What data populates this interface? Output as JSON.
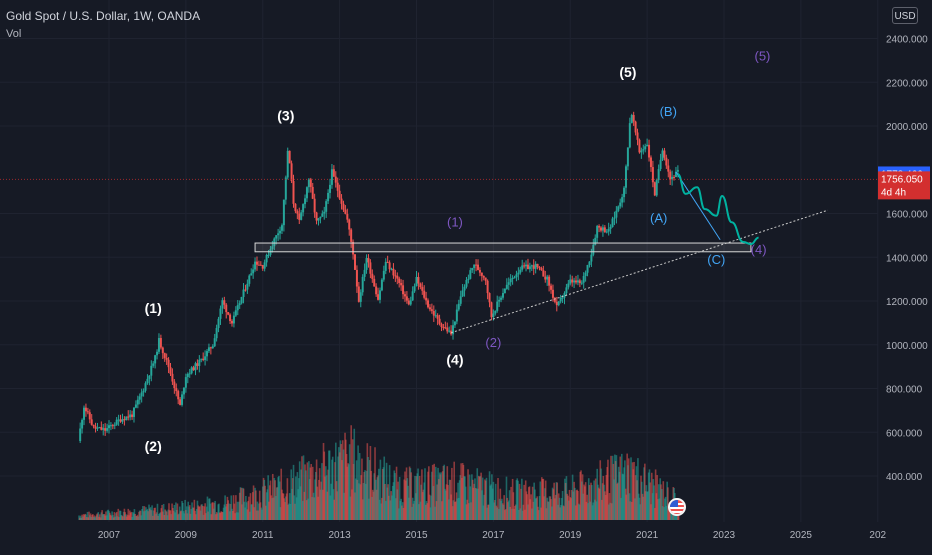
{
  "header": {
    "title": "Gold Spot / U.S. Dollar, 1W, OANDA",
    "indicator": "Vol",
    "currency_button": "USD"
  },
  "colors": {
    "background": "#161a25",
    "grid": "#1f2330",
    "axis_text": "#b2b5be",
    "up_candle": "#26a69a",
    "down_candle": "#ef5350",
    "wave_primary": "#ffffff",
    "wave_intermediate": "#7e57c2",
    "wave_corrective": "#42a5f5",
    "projection": "#00b2a0",
    "support_line": "#c8c8c8",
    "current_price_label": "#d32f2f",
    "last_price_label": "#2962ff"
  },
  "chart_data": {
    "type": "candlestick",
    "symbol": "Gold Spot / U.S. Dollar",
    "timeframe": "1W",
    "source": "OANDA",
    "x_ticks": [
      "2007",
      "2009",
      "2011",
      "2013",
      "2015",
      "2017",
      "2019",
      "2021",
      "2023",
      "2025",
      "202"
    ],
    "y_ticks": [
      "400.000",
      "600.000",
      "800.000",
      "1000.000",
      "1200.000",
      "1400.000",
      "1600.000",
      "2000.000",
      "2200.000",
      "2400.000"
    ],
    "ylim": [
      400,
      2500
    ],
    "xlim": [
      2005.5,
      2027.1
    ],
    "price_labels": {
      "last": "1778.466",
      "current": "1756.050",
      "countdown": "4d 4h"
    },
    "price_path": [
      [
        2006.2,
        560
      ],
      [
        2006.35,
        720
      ],
      [
        2006.6,
        620
      ],
      [
        2006.9,
        610
      ],
      [
        2007.3,
        660
      ],
      [
        2007.6,
        680
      ],
      [
        2007.9,
        800
      ],
      [
        2008.2,
        940
      ],
      [
        2008.3,
        1020
      ],
      [
        2008.55,
        900
      ],
      [
        2008.85,
        720
      ],
      [
        2009.0,
        860
      ],
      [
        2009.4,
        930
      ],
      [
        2009.7,
        1000
      ],
      [
        2009.95,
        1200
      ],
      [
        2010.2,
        1100
      ],
      [
        2010.5,
        1240
      ],
      [
        2010.8,
        1380
      ],
      [
        2011.0,
        1360
      ],
      [
        2011.3,
        1480
      ],
      [
        2011.5,
        1550
      ],
      [
        2011.66,
        1900
      ],
      [
        2011.8,
        1650
      ],
      [
        2011.95,
        1560
      ],
      [
        2012.2,
        1760
      ],
      [
        2012.4,
        1560
      ],
      [
        2012.6,
        1600
      ],
      [
        2012.8,
        1790
      ],
      [
        2013.0,
        1680
      ],
      [
        2013.2,
        1570
      ],
      [
        2013.35,
        1420
      ],
      [
        2013.5,
        1200
      ],
      [
        2013.7,
        1400
      ],
      [
        2014.0,
        1210
      ],
      [
        2014.2,
        1380
      ],
      [
        2014.5,
        1300
      ],
      [
        2014.8,
        1180
      ],
      [
        2015.0,
        1300
      ],
      [
        2015.3,
        1180
      ],
      [
        2015.6,
        1100
      ],
      [
        2015.9,
        1050
      ],
      [
        2016.2,
        1250
      ],
      [
        2016.5,
        1370
      ],
      [
        2016.8,
        1300
      ],
      [
        2016.95,
        1130
      ],
      [
        2017.3,
        1260
      ],
      [
        2017.7,
        1350
      ],
      [
        2018.1,
        1360
      ],
      [
        2018.4,
        1300
      ],
      [
        2018.65,
        1170
      ],
      [
        2019.0,
        1290
      ],
      [
        2019.3,
        1280
      ],
      [
        2019.55,
        1420
      ],
      [
        2019.7,
        1540
      ],
      [
        2020.0,
        1520
      ],
      [
        2020.2,
        1610
      ],
      [
        2020.4,
        1710
      ],
      [
        2020.58,
        2075
      ],
      [
        2020.8,
        1880
      ],
      [
        2021.0,
        1920
      ],
      [
        2021.2,
        1690
      ],
      [
        2021.4,
        1900
      ],
      [
        2021.6,
        1760
      ],
      [
        2021.8,
        1790
      ]
    ],
    "volume_profile": [
      [
        2006.2,
        0.05
      ],
      [
        2008.5,
        0.12
      ],
      [
        2010.0,
        0.18
      ],
      [
        2011.5,
        0.35
      ],
      [
        2013.3,
        0.65
      ],
      [
        2014.5,
        0.35
      ],
      [
        2016.0,
        0.4
      ],
      [
        2017.5,
        0.28
      ],
      [
        2019.0,
        0.3
      ],
      [
        2020.5,
        0.5
      ],
      [
        2021.8,
        0.2
      ]
    ],
    "support_zone": {
      "x_start": 2010.8,
      "x_end": 2023.7,
      "y_low": 1425,
      "y_high": 1465
    },
    "trendline": {
      "x1": 2015.9,
      "y1": 1055,
      "x2": 2025.7,
      "y2": 1615
    },
    "projection_path": [
      [
        2021.8,
        1780
      ],
      [
        2022.0,
        1690
      ],
      [
        2022.3,
        1720
      ],
      [
        2022.5,
        1620
      ],
      [
        2022.8,
        1590
      ],
      [
        2022.95,
        1680
      ],
      [
        2023.2,
        1560
      ],
      [
        2023.5,
        1470
      ],
      [
        2023.7,
        1460
      ],
      [
        2023.9,
        1490
      ]
    ],
    "corrective_line": {
      "x1": 2021.75,
      "y1": 1790,
      "x2": 2022.9,
      "y2": 1480
    },
    "wave_labels": [
      {
        "text": "(1)",
        "x": 2008.15,
        "y": 1145,
        "color": "primary"
      },
      {
        "text": "(2)",
        "x": 2008.15,
        "y": 515,
        "color": "primary"
      },
      {
        "text": "(3)",
        "x": 2011.6,
        "y": 2025,
        "color": "primary"
      },
      {
        "text": "(4)",
        "x": 2016.0,
        "y": 910,
        "color": "primary"
      },
      {
        "text": "(5)",
        "x": 2020.5,
        "y": 2225,
        "color": "primary"
      },
      {
        "text": "(1)",
        "x": 2016.0,
        "y": 1540,
        "color": "intermediate"
      },
      {
        "text": "(2)",
        "x": 2017.0,
        "y": 990,
        "color": "intermediate"
      },
      {
        "text": "(4)",
        "x": 2023.9,
        "y": 1415,
        "color": "intermediate"
      },
      {
        "text": "(5)",
        "x": 2024.0,
        "y": 2300,
        "color": "intermediate"
      },
      {
        "text": "(A)",
        "x": 2021.3,
        "y": 1560,
        "color": "corrective"
      },
      {
        "text": "(B)",
        "x": 2021.55,
        "y": 2045,
        "color": "corrective"
      },
      {
        "text": "(C)",
        "x": 2022.8,
        "y": 1370,
        "color": "corrective"
      }
    ]
  }
}
